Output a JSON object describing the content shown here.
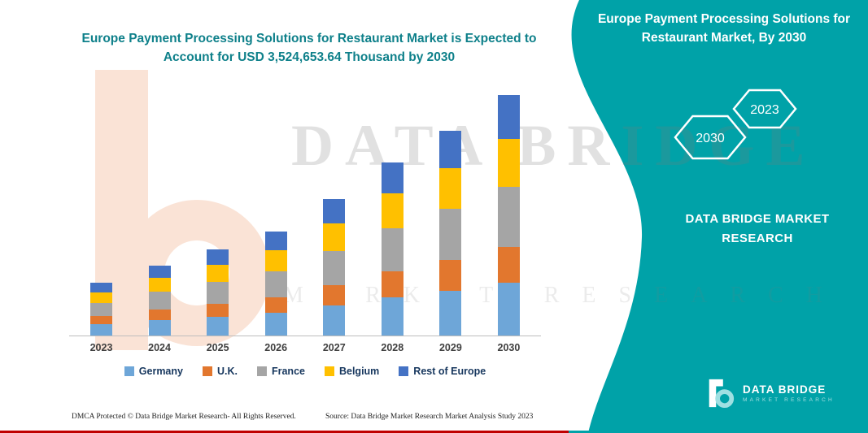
{
  "colors": {
    "teal": "#00A2A8",
    "title-teal": "#0E808A",
    "red": "#C00000",
    "legend-text": "#17375E"
  },
  "header": {
    "title_line1": "Europe Payment Processing Solutions for Restaurant Market is Expected to",
    "title_line2": "Account for USD 3,524,653.64 Thousand by 2030"
  },
  "side_panel": {
    "title_line1": "Europe Payment Processing Solutions for",
    "title_line2": "Restaurant Market, By 2030",
    "badge_front": "2023",
    "badge_back": "2030",
    "brand_line1": "DATA BRIDGE MARKET",
    "brand_line2": "RESEARCH",
    "logo_text": "DATA BRIDGE",
    "logo_subtext": "MARKET RESEARCH"
  },
  "watermark": {
    "line1": "DATA BRIDGE",
    "line2": "MARKET RESEARCH"
  },
  "footer": {
    "dmca": "DMCA Protected © Data Bridge Market Research-  All Rights Reserved.",
    "source": "Source: Data Bridge Market Research  Market Analysis Study 2023"
  },
  "chart_data": {
    "type": "bar",
    "stacked": true,
    "title": "Europe Payment Processing Solutions for Restaurant Market is Expected to Account for USD 3,524,653.64 Thousand by 2030",
    "unit": "USD Thousand",
    "categories": [
      "2023",
      "2024",
      "2025",
      "2026",
      "2027",
      "2028",
      "2029",
      "2030"
    ],
    "series": [
      {
        "name": "Germany",
        "color": "#6EA6D8",
        "values": [
          169600,
          226600,
          279400,
          334400,
          440000,
          558800,
          660000,
          775424
        ]
      },
      {
        "name": "U.K.",
        "color": "#E2772E",
        "values": [
          115650,
          154500,
          190500,
          228000,
          300000,
          381000,
          450000,
          528698
        ]
      },
      {
        "name": "France",
        "color": "#A5A5A5",
        "values": [
          192750,
          257500,
          317500,
          380000,
          500000,
          635000,
          750000,
          881163
        ]
      },
      {
        "name": "Belgium",
        "color": "#FFC000",
        "values": [
          154200,
          206000,
          254000,
          304000,
          400000,
          508000,
          600000,
          704931
        ]
      },
      {
        "name": "Rest of Europe",
        "color": "#4472C4",
        "values": [
          138680,
          185400,
          228600,
          273600,
          360000,
          457200,
          540000,
          634438
        ]
      }
    ],
    "totals": [
      770880,
      1030000,
      1270000,
      1520000,
      2000000,
      2540000,
      3000000,
      3524654
    ],
    "ylim": [
      0,
      3600000
    ],
    "grid": false,
    "legend_position": "bottom",
    "xlabel": "",
    "ylabel": ""
  }
}
